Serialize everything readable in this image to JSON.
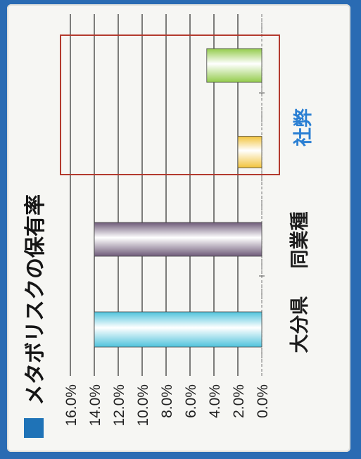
{
  "chart_data": {
    "type": "bar",
    "title": "メタボリスクの保有率",
    "categories": [
      "大分県",
      "同業種",
      "社弊"
    ],
    "series": [
      {
        "values": [
          14.0,
          14.0,
          null
        ]
      },
      {
        "values": [
          null,
          null,
          2.0
        ]
      },
      {
        "values": [
          null,
          null,
          4.6
        ]
      }
    ],
    "tick_labels": [
      "0.0%",
      "2.0%",
      "4.0%",
      "6.0%",
      "8.0%",
      "10.0%",
      "12.0%",
      "14.0%",
      "16.0%"
    ],
    "ylim": [
      0,
      16
    ],
    "grid": true,
    "colors": {
      "oita": "#4fc3dc",
      "industry": "#6e5a78",
      "company_a": "#f2c33a",
      "company_b": "#93cc4b",
      "highlight_box": "#b33a2e",
      "company_label": "#2a7fd3",
      "title_square": "#1f73b7"
    }
  }
}
